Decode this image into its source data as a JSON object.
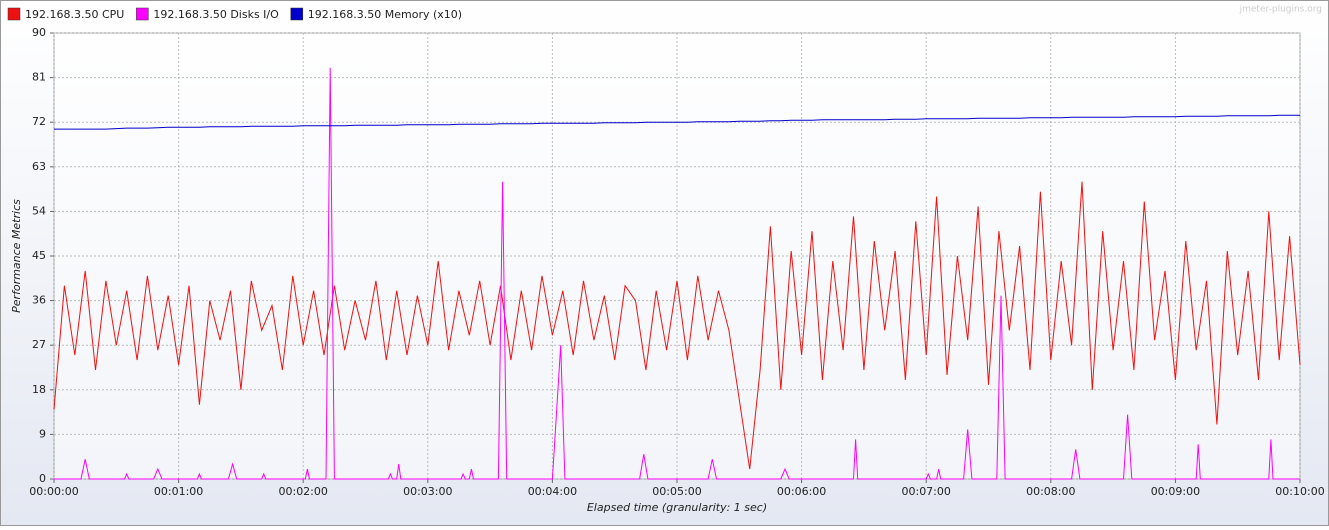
{
  "chart_data": {
    "type": "line",
    "watermark": "jmeter-plugins.org",
    "y_label": "Performance Metrics",
    "x_label": "Elapsed time (granularity: 1 sec)",
    "xlim": [
      0,
      600
    ],
    "ylim": [
      0,
      90
    ],
    "yticks": [
      0,
      9,
      18,
      27,
      36,
      45,
      54,
      63,
      72,
      81,
      90
    ],
    "xticks": [
      {
        "value": 0,
        "label": "00:00:00"
      },
      {
        "value": 60,
        "label": "00:01:00"
      },
      {
        "value": 120,
        "label": "00:02:00"
      },
      {
        "value": 180,
        "label": "00:03:00"
      },
      {
        "value": 240,
        "label": "00:04:00"
      },
      {
        "value": 300,
        "label": "00:05:00"
      },
      {
        "value": 360,
        "label": "00:06:00"
      },
      {
        "value": 420,
        "label": "00:07:00"
      },
      {
        "value": 480,
        "label": "00:08:00"
      },
      {
        "value": 540,
        "label": "00:09:00"
      },
      {
        "value": 600,
        "label": "00:10:00"
      }
    ],
    "grid": true,
    "legend": "top",
    "x": [
      0,
      5,
      10,
      15,
      20,
      25,
      30,
      35,
      40,
      45,
      50,
      55,
      60,
      65,
      70,
      75,
      80,
      85,
      90,
      95,
      100,
      105,
      110,
      115,
      120,
      125,
      130,
      135,
      140,
      145,
      150,
      155,
      160,
      165,
      170,
      175,
      180,
      185,
      190,
      195,
      200,
      205,
      210,
      215,
      220,
      225,
      230,
      235,
      240,
      245,
      250,
      255,
      260,
      265,
      270,
      275,
      280,
      285,
      290,
      295,
      300,
      305,
      310,
      315,
      320,
      325,
      330,
      335,
      340,
      345,
      350,
      355,
      360,
      365,
      370,
      375,
      380,
      385,
      390,
      395,
      400,
      405,
      410,
      415,
      420,
      425,
      430,
      435,
      440,
      445,
      450,
      455,
      460,
      465,
      470,
      475,
      480,
      485,
      490,
      495,
      500,
      505,
      510,
      515,
      520,
      525,
      530,
      535,
      540,
      545,
      550,
      555,
      560,
      565,
      570,
      575,
      580,
      585,
      590,
      595,
      600
    ],
    "series": [
      {
        "name": "192.168.3.50 CPU",
        "color": "#ee1111",
        "values": [
          14,
          39,
          25,
          42,
          22,
          40,
          27,
          38,
          24,
          41,
          26,
          37,
          23,
          39,
          15,
          36,
          28,
          38,
          18,
          40,
          30,
          35,
          22,
          41,
          27,
          38,
          25,
          39,
          26,
          36,
          28,
          40,
          24,
          38,
          25,
          37,
          27,
          44,
          26,
          38,
          29,
          40,
          27,
          39,
          24,
          38,
          26,
          41,
          29,
          38,
          25,
          40,
          28,
          37,
          24,
          39,
          36,
          22,
          38,
          26,
          40,
          24,
          41,
          28,
          38,
          30,
          16,
          2,
          22,
          51,
          18,
          46,
          25,
          50,
          20,
          44,
          26,
          53,
          22,
          48,
          30,
          46,
          20,
          52,
          25,
          57,
          21,
          45,
          28,
          55,
          19,
          50,
          30,
          47,
          22,
          58,
          24,
          44,
          27,
          60,
          18,
          50,
          26,
          44,
          22,
          56,
          28,
          42,
          20,
          48,
          26,
          40,
          11,
          46,
          25,
          42,
          20,
          54,
          24,
          49,
          23
        ]
      },
      {
        "name": "192.168.3.50 Disks I/O",
        "color": "#ff00ff",
        "x": [
          0,
          13,
          15,
          17,
          34,
          35,
          36,
          48,
          50,
          52,
          69,
          70,
          71,
          84,
          86,
          88,
          100,
          101,
          102,
          121,
          122,
          123,
          131,
          133,
          135,
          161,
          162,
          163,
          165,
          166,
          167,
          196,
          197,
          198,
          200,
          201,
          202,
          214,
          216,
          218,
          240,
          244,
          246,
          282,
          284,
          286,
          315,
          317,
          319,
          350,
          352,
          354,
          385,
          386,
          387,
          420,
          421,
          422,
          425,
          426,
          427,
          438,
          440,
          442,
          454,
          456,
          458,
          490,
          492,
          494,
          515,
          517,
          519,
          550,
          551,
          552,
          585,
          586,
          587,
          600
        ],
        "values": [
          0,
          0,
          4,
          0,
          0,
          1,
          0,
          0,
          2,
          0,
          0,
          1,
          0,
          0,
          3,
          0,
          0,
          1,
          0,
          0,
          2,
          0,
          0,
          83,
          0,
          0,
          1,
          0,
          0,
          3,
          0,
          0,
          1,
          0,
          0,
          2,
          0,
          0,
          60,
          0,
          0,
          27,
          0,
          0,
          5,
          0,
          0,
          4,
          0,
          0,
          2,
          0,
          0,
          8,
          0,
          0,
          1,
          0,
          0,
          2,
          0,
          0,
          10,
          0,
          0,
          37,
          0,
          0,
          6,
          0,
          0,
          13,
          0,
          0,
          7,
          0,
          0,
          8,
          0,
          0
        ]
      },
      {
        "name": "192.168.3.50 Memory (x10)",
        "color": "#0000cc",
        "values": [
          70.6,
          70.6,
          70.6,
          70.6,
          70.6,
          70.6,
          70.7,
          70.8,
          70.8,
          70.8,
          70.9,
          71.0,
          71.0,
          71.0,
          71.0,
          71.1,
          71.1,
          71.1,
          71.1,
          71.2,
          71.2,
          71.2,
          71.2,
          71.2,
          71.3,
          71.3,
          71.3,
          71.3,
          71.3,
          71.4,
          71.4,
          71.4,
          71.4,
          71.4,
          71.5,
          71.5,
          71.5,
          71.5,
          71.5,
          71.6,
          71.6,
          71.6,
          71.6,
          71.7,
          71.7,
          71.7,
          71.7,
          71.8,
          71.8,
          71.8,
          71.8,
          71.8,
          71.8,
          71.9,
          71.9,
          71.9,
          71.9,
          72.0,
          72.0,
          72.0,
          72.0,
          72.0,
          72.1,
          72.1,
          72.1,
          72.1,
          72.2,
          72.2,
          72.2,
          72.3,
          72.3,
          72.4,
          72.4,
          72.4,
          72.5,
          72.5,
          72.5,
          72.5,
          72.5,
          72.5,
          72.5,
          72.6,
          72.6,
          72.6,
          72.7,
          72.7,
          72.7,
          72.7,
          72.7,
          72.8,
          72.8,
          72.8,
          72.8,
          72.8,
          72.9,
          72.9,
          72.9,
          72.9,
          73.0,
          73.0,
          73.0,
          73.0,
          73.0,
          73.0,
          73.1,
          73.1,
          73.1,
          73.1,
          73.1,
          73.2,
          73.2,
          73.2,
          73.2,
          73.3,
          73.3,
          73.3,
          73.3,
          73.3,
          73.4,
          73.4,
          73.4
        ]
      }
    ]
  }
}
